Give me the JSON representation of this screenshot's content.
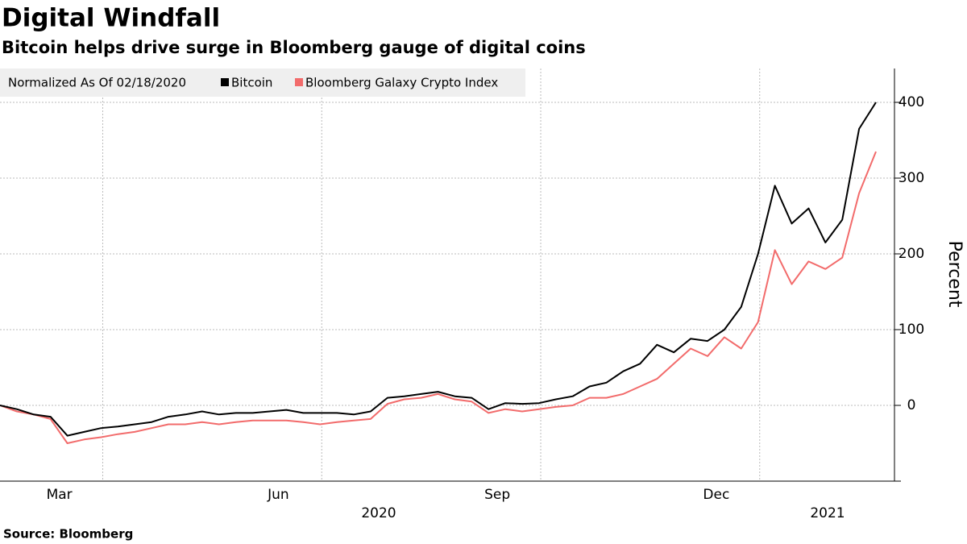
{
  "chart_data": {
    "type": "line",
    "title": "Digital Windfall",
    "subtitle": "Bitcoin helps drive surge in Bloomberg gauge of digital coins",
    "legend_title": "Normalized As Of 02/18/2020",
    "y_axis_label": "Percent",
    "source": "Source: Bloomberg",
    "categories": [
      null,
      null,
      null,
      null,
      "Mar",
      null,
      null,
      null,
      null,
      null,
      null,
      null,
      null,
      null,
      null,
      null,
      null,
      "Jun",
      null,
      null,
      null,
      null,
      null,
      null,
      null,
      null,
      null,
      null,
      null,
      null,
      "Sep",
      null,
      null,
      null,
      null,
      null,
      null,
      null,
      null,
      null,
      null,
      null,
      null,
      "Dec",
      null,
      null,
      null,
      null,
      null,
      null,
      null,
      null,
      null
    ],
    "year_labels": [
      "2020",
      "2021"
    ],
    "series": [
      {
        "name": "Bitcoin",
        "color": "#000000",
        "values": [
          0,
          -5,
          -12,
          -15,
          -40,
          -35,
          -30,
          -28,
          -25,
          -22,
          -15,
          -12,
          -8,
          -12,
          -10,
          -10,
          -8,
          -6,
          -10,
          -10,
          -10,
          -12,
          -8,
          10,
          12,
          15,
          18,
          12,
          10,
          -5,
          3,
          2,
          3,
          8,
          12,
          25,
          30,
          45,
          55,
          80,
          70,
          88,
          85,
          100,
          130,
          200,
          290,
          240,
          260,
          215,
          245,
          365,
          400
        ]
      },
      {
        "name": "Bloomberg Galaxy Crypto Index",
        "color": "#f26b6b",
        "values": [
          0,
          -8,
          -12,
          -18,
          -50,
          -45,
          -42,
          -38,
          -35,
          -30,
          -25,
          -25,
          -22,
          -25,
          -22,
          -20,
          -20,
          -20,
          -22,
          -25,
          -22,
          -20,
          -18,
          2,
          8,
          10,
          15,
          8,
          5,
          -10,
          -5,
          -8,
          -5,
          -2,
          0,
          10,
          10,
          15,
          25,
          35,
          55,
          75,
          65,
          90,
          75,
          110,
          205,
          160,
          190,
          180,
          195,
          280,
          335
        ]
      }
    ],
    "ylim": [
      -100,
      450
    ],
    "yticks": [
      0,
      100,
      200,
      300,
      400
    ],
    "grid": true
  }
}
